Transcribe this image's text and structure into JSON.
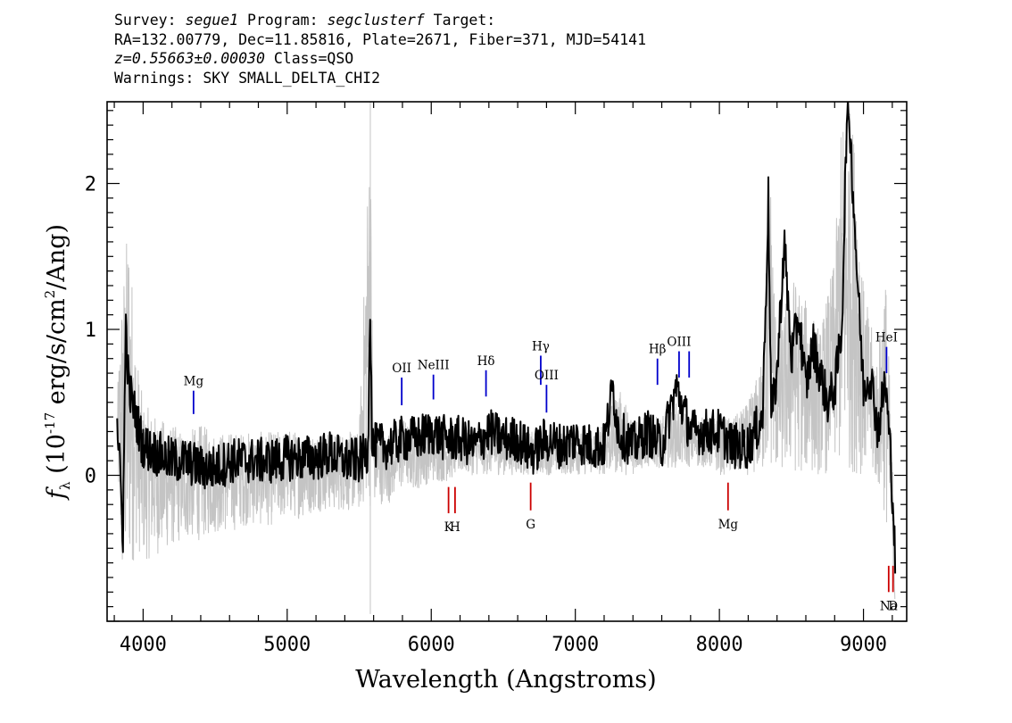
{
  "header": {
    "survey_label": "Survey:",
    "survey": "segue1",
    "program_label": "Program:",
    "program": "segclusterf",
    "target_label": "Target:",
    "line2": "RA=132.00779, Dec=11.85816, Plate=2671, Fiber=371, MJD=54141",
    "redshift": "z=0.55663±0.00030",
    "class": "Class=QSO",
    "warnings": "Warnings: SKY SMALL_DELTA_CHI2"
  },
  "chart_data": {
    "type": "line",
    "xlabel": "Wavelength (Angstroms)",
    "ylabel": "f_λ (10^-17 erg/s/cm^2/Ang)",
    "xlim": [
      3750,
      9300
    ],
    "ylim": [
      -1.0,
      2.56
    ],
    "x_ticks": [
      4000,
      5000,
      6000,
      7000,
      8000,
      9000
    ],
    "y_ticks": [
      0,
      1,
      2
    ],
    "grid": false,
    "series": [
      {
        "color": "#c4c4c4",
        "role": "noisy flux",
        "x": [
          3820,
          3850,
          3900,
          3950,
          4000,
          4100,
          4200,
          4300,
          4400,
          4500,
          4600,
          4700,
          4800,
          4900,
          5000,
          5100,
          5200,
          5300,
          5400,
          5500,
          5575,
          5600,
          5700,
          5800,
          5900,
          6000,
          6100,
          6200,
          6300,
          6400,
          6500,
          6600,
          6700,
          6800,
          6900,
          7000,
          7100,
          7200,
          7300,
          7400,
          7500,
          7600,
          7700,
          7800,
          7900,
          8000,
          8100,
          8200,
          8300,
          8350,
          8400,
          8500,
          8600,
          8700,
          8800,
          8850,
          8900,
          8950,
          9000,
          9100,
          9150,
          9200,
          9220
        ],
        "values": [
          0.5,
          1.3,
          1.8,
          0.9,
          0.5,
          0.4,
          0.35,
          0.3,
          0.35,
          0.3,
          0.3,
          0.3,
          0.3,
          0.3,
          0.32,
          0.3,
          0.3,
          0.3,
          0.3,
          0.3,
          2.56,
          0.3,
          0.3,
          0.4,
          0.3,
          0.35,
          0.3,
          0.35,
          0.3,
          0.3,
          0.3,
          0.3,
          0.3,
          0.3,
          0.3,
          0.3,
          0.3,
          0.35,
          0.6,
          0.4,
          0.4,
          0.4,
          0.5,
          0.4,
          0.4,
          0.4,
          0.4,
          0.5,
          0.8,
          2.2,
          0.9,
          1.4,
          1.2,
          1.0,
          1.5,
          2.5,
          2.56,
          2.3,
          1.3,
          0.8,
          1.5,
          0.2,
          -0.5
        ],
        "lower": [
          0.1,
          -0.9,
          -0.8,
          -0.5,
          -0.6,
          -0.55,
          -0.5,
          -0.45,
          -0.45,
          -0.4,
          -0.4,
          -0.35,
          -0.35,
          -0.35,
          -0.3,
          -0.3,
          -0.25,
          -0.25,
          -0.25,
          -0.25,
          -0.25,
          -0.2,
          -0.2,
          -0.1,
          -0.1,
          -0.05,
          -0.05,
          0.0,
          0.0,
          0.0,
          0.0,
          0.0,
          0.0,
          0.0,
          0.0,
          0.0,
          0.0,
          0.0,
          0.0,
          0.0,
          0.05,
          0.05,
          0.05,
          0.05,
          0.05,
          0.0,
          0.0,
          0.0,
          0.0,
          0.0,
          0.0,
          0.0,
          0.0,
          0.0,
          0.0,
          0.0,
          0.0,
          0.0,
          0.0,
          -0.1,
          -0.3,
          -0.6,
          -1.0
        ]
      },
      {
        "color": "#000000",
        "role": "smoothed flux",
        "x": [
          3820,
          3840,
          3860,
          3880,
          3900,
          3950,
          4000,
          4100,
          4200,
          4300,
          4400,
          4500,
          4600,
          4700,
          4800,
          4900,
          5000,
          5100,
          5200,
          5300,
          5400,
          5500,
          5560,
          5575,
          5590,
          5700,
          5800,
          5900,
          6000,
          6100,
          6200,
          6300,
          6400,
          6500,
          6600,
          6700,
          6800,
          6900,
          7000,
          7100,
          7200,
          7260,
          7300,
          7400,
          7500,
          7600,
          7700,
          7800,
          7900,
          8000,
          8100,
          8200,
          8300,
          8340,
          8360,
          8400,
          8450,
          8500,
          8550,
          8600,
          8650,
          8700,
          8750,
          8800,
          8850,
          8880,
          8900,
          8950,
          9000,
          9050,
          9100,
          9150,
          9170,
          9190,
          9210,
          9220
        ],
        "values": [
          0.4,
          0.0,
          -0.4,
          1.05,
          0.6,
          0.4,
          0.2,
          0.15,
          0.1,
          0.1,
          0.05,
          0.05,
          0.1,
          0.1,
          0.1,
          0.1,
          0.12,
          0.12,
          0.12,
          0.15,
          0.1,
          0.1,
          0.15,
          1.22,
          0.2,
          0.2,
          0.25,
          0.25,
          0.3,
          0.25,
          0.25,
          0.2,
          0.3,
          0.25,
          0.25,
          0.15,
          0.25,
          0.2,
          0.25,
          0.2,
          0.2,
          0.6,
          0.3,
          0.2,
          0.3,
          0.2,
          0.6,
          0.3,
          0.3,
          0.3,
          0.2,
          0.2,
          0.4,
          1.9,
          0.4,
          0.7,
          1.6,
          0.8,
          1.1,
          0.6,
          0.9,
          0.7,
          0.5,
          0.6,
          1.0,
          2.3,
          2.5,
          1.5,
          0.6,
          0.7,
          0.3,
          0.65,
          0.4,
          0.1,
          -0.3,
          -0.6
        ]
      }
    ],
    "annotations_blue": [
      {
        "label": "Mg",
        "x": 4350,
        "y_top": 0.58,
        "y_bot": 0.42
      },
      {
        "label": "OII",
        "x": 5795,
        "y_top": 0.67,
        "y_bot": 0.48
      },
      {
        "label": "NeIII",
        "x": 6015,
        "y_top": 0.69,
        "y_bot": 0.52
      },
      {
        "label": "Hδ",
        "x": 6380,
        "y_top": 0.72,
        "y_bot": 0.54
      },
      {
        "label": "Hγ",
        "x": 6760,
        "y_top": 0.82,
        "y_bot": 0.62
      },
      {
        "label": "OIII",
        "x": 6800,
        "y_top": 0.62,
        "y_bot": 0.43
      },
      {
        "label": "Hβ",
        "x": 7570,
        "y_top": 0.8,
        "y_bot": 0.62
      },
      {
        "label": "OIII",
        "x": 7720,
        "y_top": 0.85,
        "y_bot": 0.67
      },
      {
        "label": "",
        "x": 7790,
        "y_top": 0.85,
        "y_bot": 0.67
      },
      {
        "label": "HeI",
        "x": 9160,
        "y_top": 0.88,
        "y_bot": 0.7
      }
    ],
    "annotations_red": [
      {
        "label": "K",
        "x": 6120,
        "y_top": -0.08,
        "y_bot": -0.26
      },
      {
        "label": "H",
        "x": 6165,
        "y_top": -0.08,
        "y_bot": -0.26
      },
      {
        "label": "G",
        "x": 6690,
        "y_top": -0.05,
        "y_bot": -0.24
      },
      {
        "label": "Mg",
        "x": 8060,
        "y_top": -0.05,
        "y_bot": -0.24
      },
      {
        "label": "Na",
        "x": 9175,
        "y_top": -0.62,
        "y_bot": -0.8
      },
      {
        "label": "D",
        "x": 9205,
        "y_top": -0.62,
        "y_bot": -0.8
      }
    ]
  },
  "colors": {
    "noisy": "#c4c4c4",
    "smoothed": "#000000",
    "emission_marker": "#0000cc",
    "absorption_marker": "#cc0000"
  }
}
